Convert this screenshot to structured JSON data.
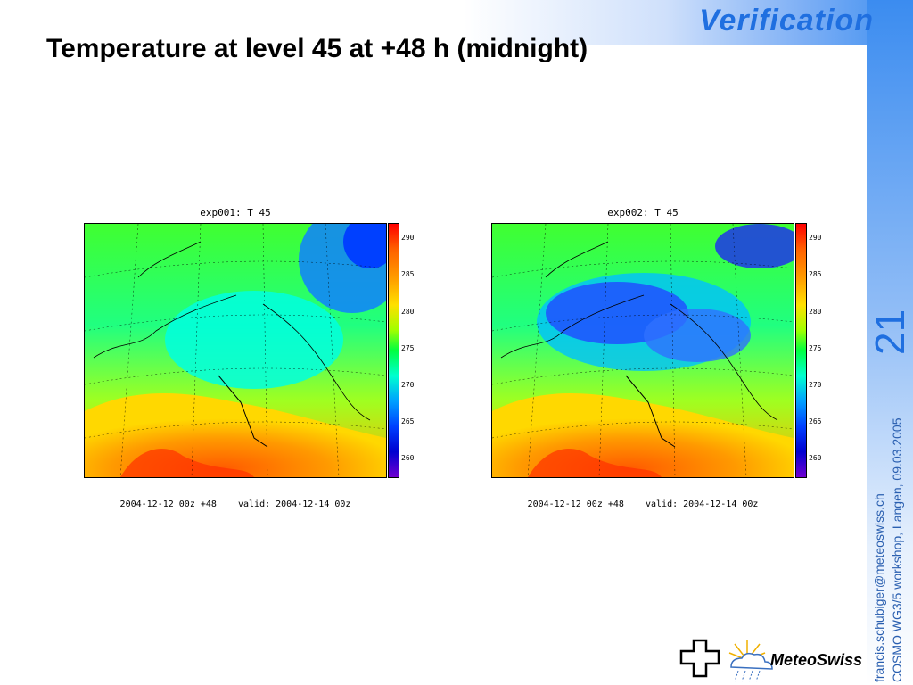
{
  "header": {
    "section": "Verification",
    "title": "Temperature at level 45 at +48 h (midnight)"
  },
  "page_number": "21",
  "footer": {
    "email": "francis.schubiger@meteoswiss.ch",
    "event": "COSMO WG3/5 workshop, Langen, 09.03.2005"
  },
  "panels": [
    {
      "title": "exp001: T 45",
      "footer": "2004-12-12 00z +48    valid: 2004-12-14 00z",
      "ticks": [
        "290",
        "285",
        "280",
        "275",
        "270",
        "265",
        "260"
      ]
    },
    {
      "title": "exp002: T 45",
      "footer": "2004-12-12 00z +48    valid: 2004-12-14 00z",
      "ticks": [
        "290",
        "285",
        "280",
        "275",
        "270",
        "265",
        "260"
      ]
    }
  ],
  "logo": {
    "text": "MeteoSwiss"
  },
  "colors": {
    "accent": "#1f6fe0"
  }
}
